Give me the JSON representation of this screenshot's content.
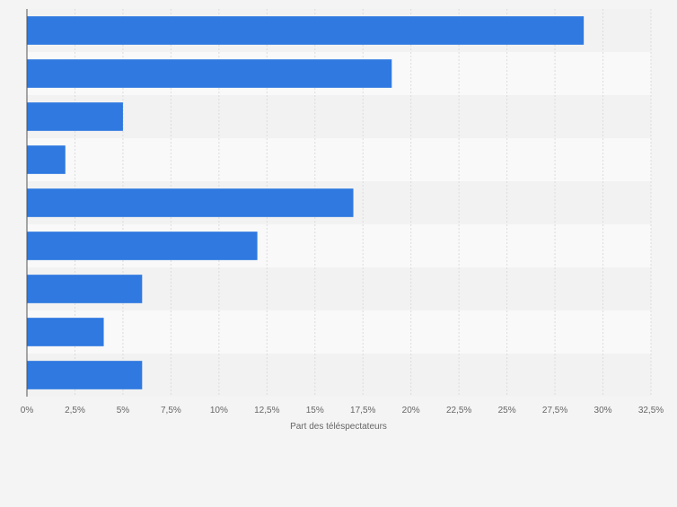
{
  "chart_data": {
    "type": "bar",
    "orientation": "horizontal",
    "categories": [
      "",
      "",
      "",
      "",
      "",
      "",
      "",
      "",
      ""
    ],
    "values": [
      29,
      19,
      5,
      2,
      17,
      12,
      6,
      4,
      6
    ],
    "title": "",
    "xlabel": "Part des téléspectateurs",
    "ylabel": "",
    "xlim": [
      0,
      32.5
    ],
    "ticks": [
      0,
      2.5,
      5,
      7.5,
      10,
      12.5,
      15,
      17.5,
      20,
      22.5,
      25,
      27.5,
      30,
      32.5
    ],
    "tick_labels": [
      "0%",
      "2,5%",
      "5%",
      "7,5%",
      "10%",
      "12,5%",
      "15%",
      "17,5%",
      "20%",
      "22,5%",
      "25%",
      "27,5%",
      "30%",
      "32,5%"
    ],
    "grid": true,
    "colors": {
      "bar": "#2f79e0",
      "background": "#f4f4f4",
      "band_light": "#f9f9f9",
      "band_dark": "#f2f2f2",
      "grid": "#dcdcdc",
      "axis": "#555555",
      "tick_text": "#666666"
    }
  }
}
